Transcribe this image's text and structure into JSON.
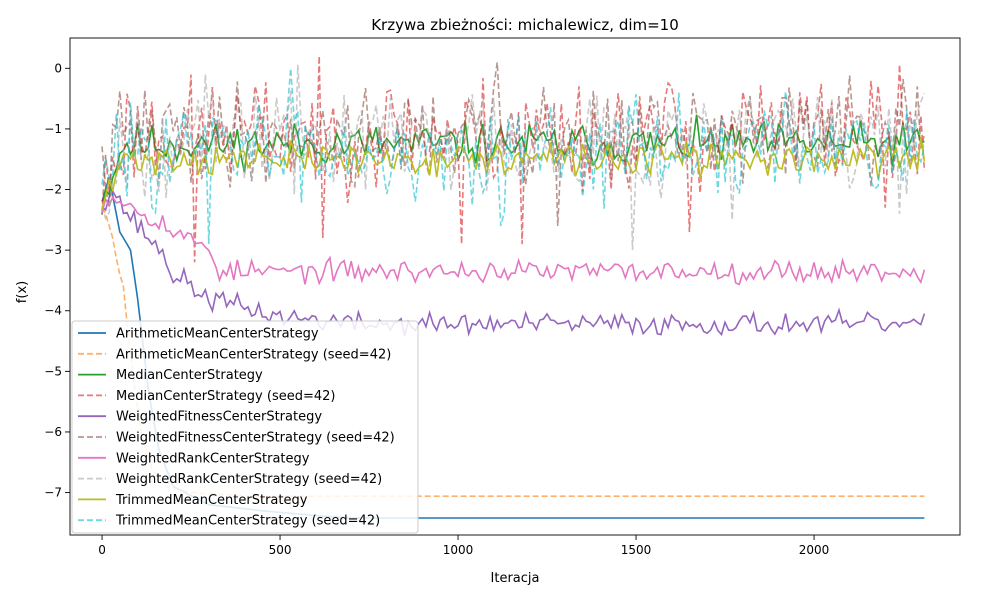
{
  "chart_data": {
    "type": "line",
    "title": "Krzywa zbieżności: michalewicz, dim=10",
    "xlabel": "Iteracja",
    "ylabel": "f(x)",
    "xlim": [
      -90,
      2410
    ],
    "ylim": [
      -7.7,
      0.5
    ],
    "xticks": [
      0,
      500,
      1000,
      1500,
      2000
    ],
    "yticks": [
      0,
      -1,
      -2,
      -3,
      -4,
      -5,
      -6,
      -7
    ],
    "legend_position": "lower-left",
    "series": [
      {
        "name": "ArithmeticMeanCenterStrategy",
        "color": "#1f77b4",
        "dashed": false,
        "behavior": "converge_flat",
        "start": -2.2,
        "bump_at": 20,
        "bump": -1.8,
        "converge_points": [
          [
            50,
            -2.7
          ],
          [
            80,
            -3.0
          ],
          [
            100,
            -3.8
          ],
          [
            130,
            -5.3
          ],
          [
            160,
            -6.3
          ],
          [
            200,
            -6.9
          ],
          [
            300,
            -7.2
          ],
          [
            450,
            -7.3
          ],
          [
            600,
            -7.38
          ],
          [
            700,
            -7.42
          ]
        ],
        "final": -7.42,
        "x_end": 2310
      },
      {
        "name": "ArithmeticMeanCenterStrategy (seed=42)",
        "color": "#ff7f0e",
        "dashed": true,
        "behavior": "converge_flat",
        "start": -2.3,
        "bump_at": 10,
        "bump": -2.4,
        "converge_points": [
          [
            30,
            -2.8
          ],
          [
            45,
            -3.3
          ],
          [
            60,
            -3.6
          ],
          [
            70,
            -4.2
          ],
          [
            90,
            -5.2
          ],
          [
            110,
            -6.0
          ],
          [
            140,
            -6.6
          ],
          [
            180,
            -6.9
          ],
          [
            250,
            -7.0
          ],
          [
            400,
            -7.05
          ]
        ],
        "final": -7.06,
        "x_end": 2310
      },
      {
        "name": "MedianCenterStrategy",
        "color": "#2ca02c",
        "dashed": false,
        "behavior": "noisy",
        "start": -2.2,
        "mean": -1.25,
        "noise": 0.17,
        "seed": 11,
        "x_end": 2310
      },
      {
        "name": "MedianCenterStrategy (seed=42)",
        "color": "#d62728",
        "dashed": true,
        "behavior": "noisy",
        "start": -2.1,
        "mean": -1.05,
        "noise": 0.45,
        "spikes": [
          [
            260,
            -3.2
          ],
          [
            620,
            -2.8
          ],
          [
            1010,
            -2.9
          ],
          [
            1180,
            -2.9
          ],
          [
            1430,
            -2.0
          ],
          [
            1650,
            -2.7
          ],
          [
            2200,
            -2.3
          ]
        ],
        "seed": 23,
        "x_end": 2310
      },
      {
        "name": "WeightedFitnessCenterStrategy",
        "color": "#9467bd",
        "dashed": false,
        "behavior": "converge_noisy",
        "start": -2.2,
        "converge_points": [
          [
            30,
            -2.0
          ],
          [
            60,
            -2.3
          ],
          [
            100,
            -2.6
          ],
          [
            150,
            -2.9
          ],
          [
            200,
            -3.4
          ],
          [
            250,
            -3.6
          ],
          [
            300,
            -3.8
          ],
          [
            400,
            -3.95
          ],
          [
            500,
            -4.1
          ],
          [
            700,
            -4.2
          ]
        ],
        "final": -4.22,
        "noise": 0.09,
        "seed": 37,
        "x_end": 2310
      },
      {
        "name": "WeightedFitnessCenterStrategy (seed=42)",
        "color": "#8c564b",
        "dashed": true,
        "behavior": "noisy",
        "start": -1.8,
        "mean": -1.1,
        "noise": 0.4,
        "spikes": [
          [
            1110,
            0.1
          ],
          [
            645,
            -2.9
          ],
          [
            1280,
            -2.6
          ]
        ],
        "seed": 41,
        "x_end": 2310
      },
      {
        "name": "WeightedRankCenterStrategy",
        "color": "#e377c2",
        "dashed": false,
        "behavior": "converge_noisy",
        "start": -2.2,
        "converge_points": [
          [
            40,
            -2.1
          ],
          [
            90,
            -2.3
          ],
          [
            160,
            -2.5
          ],
          [
            200,
            -2.7
          ],
          [
            250,
            -2.85
          ],
          [
            300,
            -2.95
          ],
          [
            330,
            -3.35
          ],
          [
            420,
            -3.35
          ],
          [
            700,
            -3.35
          ]
        ],
        "final": -3.35,
        "noise": 0.09,
        "seed": 53,
        "x_end": 2310
      },
      {
        "name": "WeightedRankCenterStrategy (seed=42)",
        "color": "#aaaaaa",
        "dashed": true,
        "behavior": "noisy",
        "start": -2.1,
        "mean": -1.15,
        "noise": 0.45,
        "spikes": [
          [
            1490,
            -3.0
          ],
          [
            1770,
            -2.5
          ],
          [
            2240,
            -2.4
          ]
        ],
        "seed": 67,
        "x_end": 2310
      },
      {
        "name": "TrimmedMeanCenterStrategy",
        "color": "#bcbd22",
        "dashed": false,
        "behavior": "noisy",
        "start": -2.3,
        "mean": -1.5,
        "noise": 0.13,
        "seed": 71,
        "x_end": 2310
      },
      {
        "name": "TrimmedMeanCenterStrategy (seed=42)",
        "color": "#17becf",
        "dashed": true,
        "behavior": "noisy",
        "start": -2.1,
        "mean": -1.3,
        "noise": 0.4,
        "spikes": [
          [
            300,
            -2.9
          ],
          [
            530,
            0.0
          ],
          [
            880,
            -2.2
          ],
          [
            1120,
            -2.6
          ],
          [
            1380,
            -2.0
          ],
          [
            1960,
            -1.9
          ]
        ],
        "seed": 83,
        "x_end": 2310
      }
    ]
  }
}
